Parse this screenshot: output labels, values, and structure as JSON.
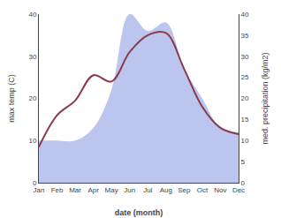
{
  "chart_data": {
    "type": "line",
    "categories": [
      "Jan",
      "Feb",
      "Mar",
      "Apr",
      "May",
      "Jun",
      "Jul",
      "Aug",
      "Sep",
      "Oct",
      "Nov",
      "Dec"
    ],
    "series": [
      {
        "type": "area",
        "axis": "y2",
        "color": "#bcc5ee",
        "values": [
          10.0,
          10.0,
          10.0,
          13.0,
          22.0,
          40.0,
          36.0,
          38.0,
          27.0,
          20.0,
          13.0,
          12.0
        ]
      },
      {
        "type": "line",
        "color": "#8b3a4a",
        "values": [
          8.5,
          16.0,
          19.5,
          25.5,
          24.0,
          31.0,
          35.0,
          35.5,
          27.0,
          18.0,
          13.0,
          11.5
        ]
      }
    ],
    "xlabel": "date (month)",
    "ylabel": "max temp (C)",
    "y2label": "med. precipitation (kg/m2)",
    "ylim": [
      0,
      40
    ],
    "yticks": [
      0,
      10,
      20,
      30,
      40
    ],
    "y2lim": [
      0,
      40
    ],
    "y2ticks": [
      0,
      5,
      10,
      15,
      20,
      25,
      30,
      35,
      40
    ],
    "grid": false
  }
}
